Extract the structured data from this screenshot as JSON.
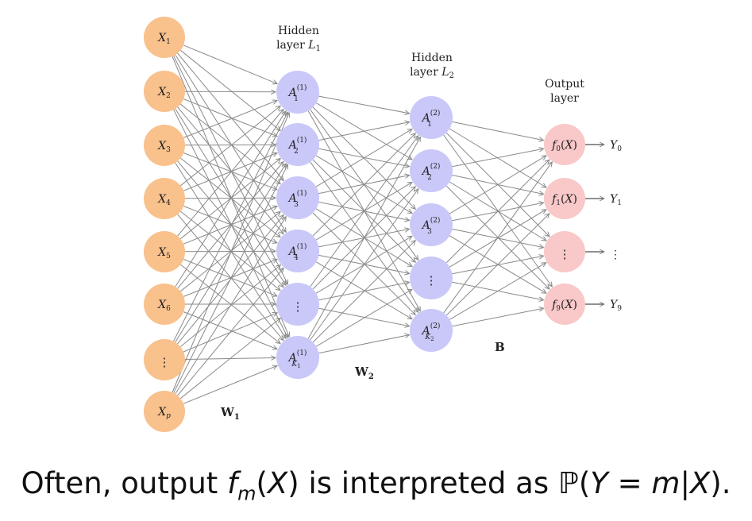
{
  "diagram": {
    "input_layer": {
      "color": "#f9c18c",
      "nodes": [
        "X1",
        "X2",
        "X3",
        "X4",
        "X5",
        "X6",
        "⋮",
        "Xp"
      ]
    },
    "hidden_layer_1": {
      "title_line1": "Hidden",
      "title_line2": "layer L1",
      "color": "#c9c8f9",
      "nodes": [
        "A1(1)",
        "A2(1)",
        "A3(1)",
        "A4(1)",
        "⋮",
        "AK1(1)"
      ]
    },
    "hidden_layer_2": {
      "title_line1": "Hidden",
      "title_line2": "layer L2",
      "color": "#c9c8f9",
      "nodes": [
        "A1(2)",
        "A2(2)",
        "A3(2)",
        "⋮",
        "AK2(2)"
      ]
    },
    "output_layer": {
      "title_line1": "Output",
      "title_line2": "layer",
      "color": "#f9c8c8",
      "nodes": [
        "f0(X)",
        "f1(X)",
        "⋮",
        "f9(X)"
      ],
      "outputs": [
        "Y0",
        "Y1",
        "⋮",
        "Y9"
      ]
    },
    "weights": {
      "w1": "W1",
      "w2": "W2",
      "b": "B"
    },
    "edge_color": "#8a8a8a"
  },
  "caption": "Often, output fm(X) is interpreted as ℙ(Y = m|X)."
}
